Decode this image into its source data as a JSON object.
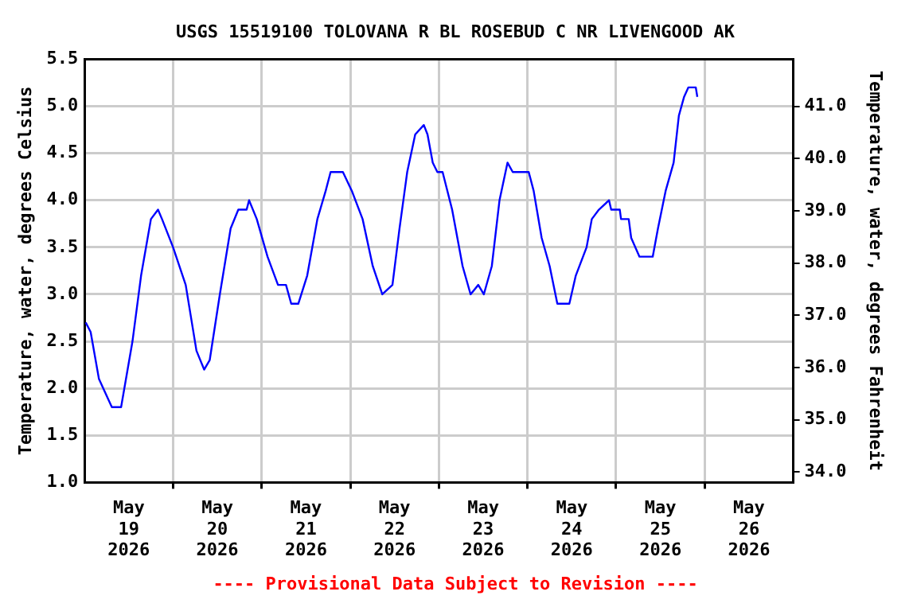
{
  "chart_data": {
    "type": "line",
    "title": "USGS 15519100 TOLOVANA R BL ROSEBUD C NR LIVENGOOD AK",
    "ylabel": "Temperature, water, degrees Celsius",
    "y2label": "Temperature, water, degrees Fahrenheit",
    "annotations": [
      "---- Provisional Data Subject to Revision ----"
    ],
    "xlim": [
      "2026-05-19T00:00",
      "2026-05-27T00:00"
    ],
    "xticks": [
      {
        "value": "2026-05-19T12:00",
        "label": "May 19 2026"
      },
      {
        "value": "2026-05-20T00:00",
        "label": null
      },
      {
        "value": "2026-05-20T12:00",
        "label": "May 20 2026"
      },
      {
        "value": "2026-05-21T00:00",
        "label": null
      },
      {
        "value": "2026-05-21T12:00",
        "label": "May 21 2026"
      },
      {
        "value": "2026-05-22T00:00",
        "label": null
      },
      {
        "value": "2026-05-22T12:00",
        "label": "May 22 2026"
      },
      {
        "value": "2026-05-23T00:00",
        "label": null
      },
      {
        "value": "2026-05-23T12:00",
        "label": "May 23 2026"
      },
      {
        "value": "2026-05-24T00:00",
        "label": null
      },
      {
        "value": "2026-05-24T12:00",
        "label": "May 24 2026"
      },
      {
        "value": "2026-05-25T00:00",
        "label": null
      },
      {
        "value": "2026-05-25T12:00",
        "label": "May 25 2026"
      },
      {
        "value": "2026-05-26T00:00",
        "label": null
      },
      {
        "value": "2026-05-26T12:00",
        "label": "May 26 2026"
      }
    ],
    "ylim": [
      1.0,
      5.5
    ],
    "yticks": [
      {
        "value": 1,
        "label": "1.0"
      },
      {
        "value": 1.5,
        "label": "1.5"
      },
      {
        "value": 2,
        "label": "2.0"
      },
      {
        "value": 2.5,
        "label": "2.5"
      },
      {
        "value": 3,
        "label": "3.0"
      },
      {
        "value": 3.5,
        "label": "3.5"
      },
      {
        "value": 4,
        "label": "4.0"
      },
      {
        "value": 4.5,
        "label": "4.5"
      },
      {
        "value": 5,
        "label": "5.0"
      },
      {
        "value": 5.5,
        "label": "5.5"
      }
    ],
    "y2lim": [
      33.8,
      41.9
    ],
    "y2ticks": [
      {
        "value": 34,
        "label": "34.0"
      },
      {
        "value": 35,
        "label": "35.0"
      },
      {
        "value": 36,
        "label": "36.0"
      },
      {
        "value": 37,
        "label": "37.0"
      },
      {
        "value": 38,
        "label": "38.0"
      },
      {
        "value": 39,
        "label": "39.0"
      },
      {
        "value": 40,
        "label": "40.0"
      },
      {
        "value": 41,
        "label": "41.0"
      }
    ],
    "grid": true,
    "legend": false,
    "marker": "none",
    "line_style": "solid",
    "series": [
      {
        "color": "#0000ff",
        "x": [
          "2026-05-19T00:20",
          "2026-05-19T01:40",
          "2026-05-19T03:55",
          "2026-05-19T07:25",
          "2026-05-19T09:55",
          "2026-05-19T13:00",
          "2026-05-19T15:20",
          "2026-05-19T18:00",
          "2026-05-19T19:55",
          "2026-05-19T21:00",
          "2026-05-20T00:00",
          "2026-05-20T03:25",
          "2026-05-20T06:20",
          "2026-05-20T08:25",
          "2026-05-20T09:55",
          "2026-05-20T12:40",
          "2026-05-20T15:35",
          "2026-05-20T17:40",
          "2026-05-20T19:55",
          "2026-05-20T20:35",
          "2026-05-20T22:40",
          "2026-05-21T01:35",
          "2026-05-21T04:25",
          "2026-05-21T06:35",
          "2026-05-21T08:00",
          "2026-05-21T09:55",
          "2026-05-21T12:20",
          "2026-05-21T15:05",
          "2026-05-21T17:20",
          "2026-05-21T18:40",
          "2026-05-21T22:00",
          "2026-05-22T00:25",
          "2026-05-22T03:20",
          "2026-05-22T06:05",
          "2026-05-22T08:40",
          "2026-05-22T11:25",
          "2026-05-22T13:20",
          "2026-05-22T15:25",
          "2026-05-22T17:35",
          "2026-05-22T19:55",
          "2026-05-22T20:55",
          "2026-05-22T22:20",
          "2026-05-22T23:35",
          "2026-05-23T01:00",
          "2026-05-23T03:35",
          "2026-05-23T05:00",
          "2026-05-23T06:25",
          "2026-05-23T08:35",
          "2026-05-23T10:40",
          "2026-05-23T12:10",
          "2026-05-23T14:20",
          "2026-05-23T16:25",
          "2026-05-23T18:35",
          "2026-05-23T20:00",
          "2026-05-24T00:20",
          "2026-05-24T01:40",
          "2026-05-24T03:50",
          "2026-05-24T06:00",
          "2026-05-24T08:05",
          "2026-05-24T11:20",
          "2026-05-24T13:05",
          "2026-05-24T16:00",
          "2026-05-24T17:25",
          "2026-05-24T19:20",
          "2026-05-24T22:05",
          "2026-05-24T22:40",
          "2026-05-25T01:00",
          "2026-05-25T01:20",
          "2026-05-25T03:25",
          "2026-05-25T04:05",
          "2026-05-25T06:20",
          "2026-05-25T09:55",
          "2026-05-25T11:20",
          "2026-05-25T13:25",
          "2026-05-25T15:35",
          "2026-05-25T17:00",
          "2026-05-25T18:25",
          "2026-05-25T19:35",
          "2026-05-25T21:35",
          "2026-05-25T22:00"
        ],
        "values": [
          2.7,
          2.6,
          2.1,
          1.8,
          1.8,
          2.5,
          3.2,
          3.8,
          3.9,
          3.8,
          3.5,
          3.1,
          2.4,
          2.2,
          2.3,
          3.0,
          3.7,
          3.9,
          3.9,
          4.0,
          3.8,
          3.4,
          3.1,
          3.1,
          2.9,
          2.9,
          3.2,
          3.8,
          4.1,
          4.3,
          4.3,
          4.1,
          3.8,
          3.3,
          3.0,
          3.1,
          3.7,
          4.3,
          4.7,
          4.8,
          4.7,
          4.4,
          4.3,
          4.3,
          3.9,
          3.6,
          3.3,
          3.0,
          3.1,
          3.0,
          3.3,
          4.0,
          4.4,
          4.3,
          4.3,
          4.1,
          3.6,
          3.3,
          2.9,
          2.9,
          3.2,
          3.5,
          3.8,
          3.9,
          4.0,
          3.9,
          3.9,
          3.8,
          3.8,
          3.6,
          3.4,
          3.4,
          3.7,
          4.1,
          4.4,
          4.9,
          5.1,
          5.2,
          5.2,
          5.1
        ]
      }
    ]
  }
}
